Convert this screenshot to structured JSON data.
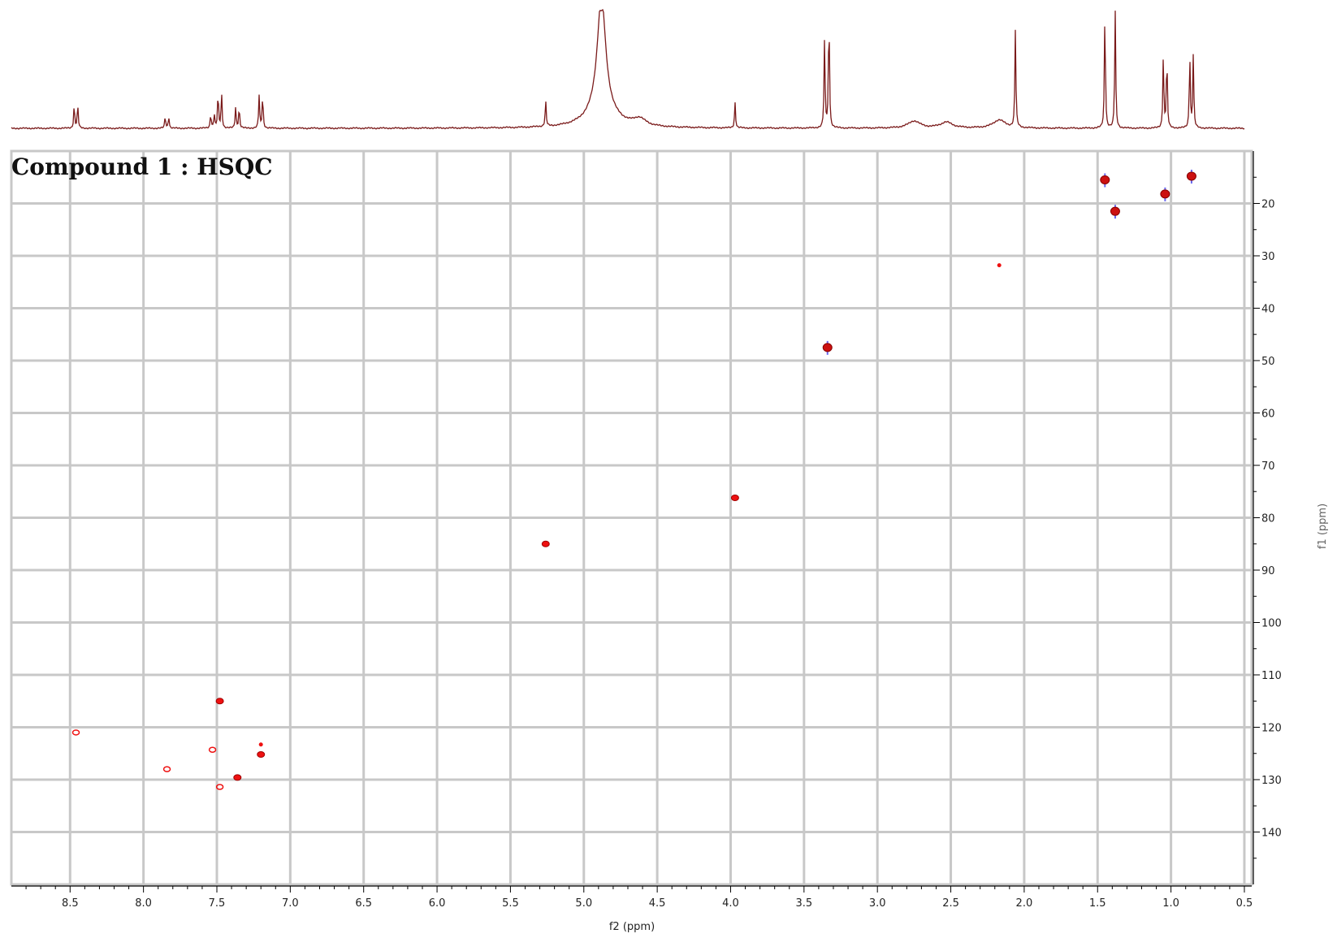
{
  "chart_data": {
    "type": "scatter",
    "title": "Compound 1 : HSQC",
    "xlabel": "f2 (ppm)",
    "ylabel": "f1 (ppm)",
    "xlim": [
      8.9,
      0.45
    ],
    "ylim": [
      10,
      150
    ],
    "x_ticks": [
      8.5,
      8.0,
      7.5,
      7.0,
      6.5,
      6.0,
      5.5,
      5.0,
      4.5,
      4.0,
      3.5,
      3.0,
      2.5,
      2.0,
      1.5,
      1.0,
      0.5
    ],
    "x_tick_labels": [
      "8.5",
      "8.0",
      "7.5",
      "7.0",
      "6.5",
      "6.0",
      "5.5",
      "5.0",
      "4.5",
      "4.0",
      "3.5",
      "3.0",
      "2.5",
      "2.0",
      "1.5",
      "1.0",
      "0.5"
    ],
    "y_ticks": [
      20,
      30,
      40,
      50,
      60,
      70,
      80,
      90,
      100,
      110,
      120,
      130,
      140
    ],
    "y_tick_labels": [
      "20",
      "30",
      "40",
      "50",
      "60",
      "70",
      "80",
      "90",
      "100",
      "110",
      "120",
      "130",
      "140"
    ],
    "grid": true,
    "series": [
      {
        "color": "#ee1111",
        "points": [
          {
            "x": 8.46,
            "y": 121.0,
            "style": "open"
          },
          {
            "x": 7.84,
            "y": 128.0,
            "style": "open"
          },
          {
            "x": 7.53,
            "y": 124.3,
            "style": "open"
          },
          {
            "x": 7.48,
            "y": 115.0,
            "style": "solid"
          },
          {
            "x": 7.48,
            "y": 131.4,
            "style": "open"
          },
          {
            "x": 7.36,
            "y": 129.6,
            "style": "solid"
          },
          {
            "x": 7.2,
            "y": 123.3,
            "style": "small"
          },
          {
            "x": 7.2,
            "y": 125.2,
            "style": "solid"
          },
          {
            "x": 5.26,
            "y": 85.0,
            "style": "solid"
          },
          {
            "x": 3.97,
            "y": 76.2,
            "style": "solid"
          },
          {
            "x": 3.34,
            "y": 47.5,
            "style": "large"
          },
          {
            "x": 2.17,
            "y": 31.8,
            "style": "small"
          },
          {
            "x": 1.45,
            "y": 15.5,
            "style": "large"
          },
          {
            "x": 1.38,
            "y": 21.5,
            "style": "large"
          },
          {
            "x": 1.04,
            "y": 18.2,
            "style": "large"
          },
          {
            "x": 0.86,
            "y": 14.8,
            "style": "large"
          }
        ]
      }
    ],
    "projection_1d": {
      "color": "#7a1a1a",
      "baseline_fraction": 0.0,
      "peaks": [
        {
          "ppm": 8.46,
          "height": 0.2,
          "multiplet": "d"
        },
        {
          "ppm": 7.84,
          "height": 0.1,
          "multiplet": "d"
        },
        {
          "ppm": 7.53,
          "height": 0.12,
          "multiplet": "d"
        },
        {
          "ppm": 7.48,
          "height": 0.3,
          "multiplet": "d"
        },
        {
          "ppm": 7.36,
          "height": 0.18,
          "multiplet": "d"
        },
        {
          "ppm": 7.2,
          "height": 0.28,
          "multiplet": "d"
        },
        {
          "ppm": 5.26,
          "height": 0.22,
          "multiplet": "s"
        },
        {
          "ppm": 4.88,
          "height": 1.0,
          "multiplet": "broad"
        },
        {
          "ppm": 4.62,
          "height": 0.06,
          "multiplet": "hump"
        },
        {
          "ppm": 3.97,
          "height": 0.22,
          "multiplet": "s"
        },
        {
          "ppm": 3.36,
          "height": 0.75,
          "multiplet": "s"
        },
        {
          "ppm": 3.33,
          "height": 1.0,
          "multiplet": "s"
        },
        {
          "ppm": 2.75,
          "height": 0.06,
          "multiplet": "hump"
        },
        {
          "ppm": 2.53,
          "height": 0.05,
          "multiplet": "hump"
        },
        {
          "ppm": 2.17,
          "height": 0.07,
          "multiplet": "hump"
        },
        {
          "ppm": 2.06,
          "height": 0.83,
          "multiplet": "s"
        },
        {
          "ppm": 1.45,
          "height": 1.0,
          "multiplet": "s"
        },
        {
          "ppm": 1.38,
          "height": 1.0,
          "multiplet": "s"
        },
        {
          "ppm": 1.04,
          "height": 0.62,
          "multiplet": "d"
        },
        {
          "ppm": 0.86,
          "height": 0.62,
          "multiplet": "d"
        }
      ]
    }
  }
}
